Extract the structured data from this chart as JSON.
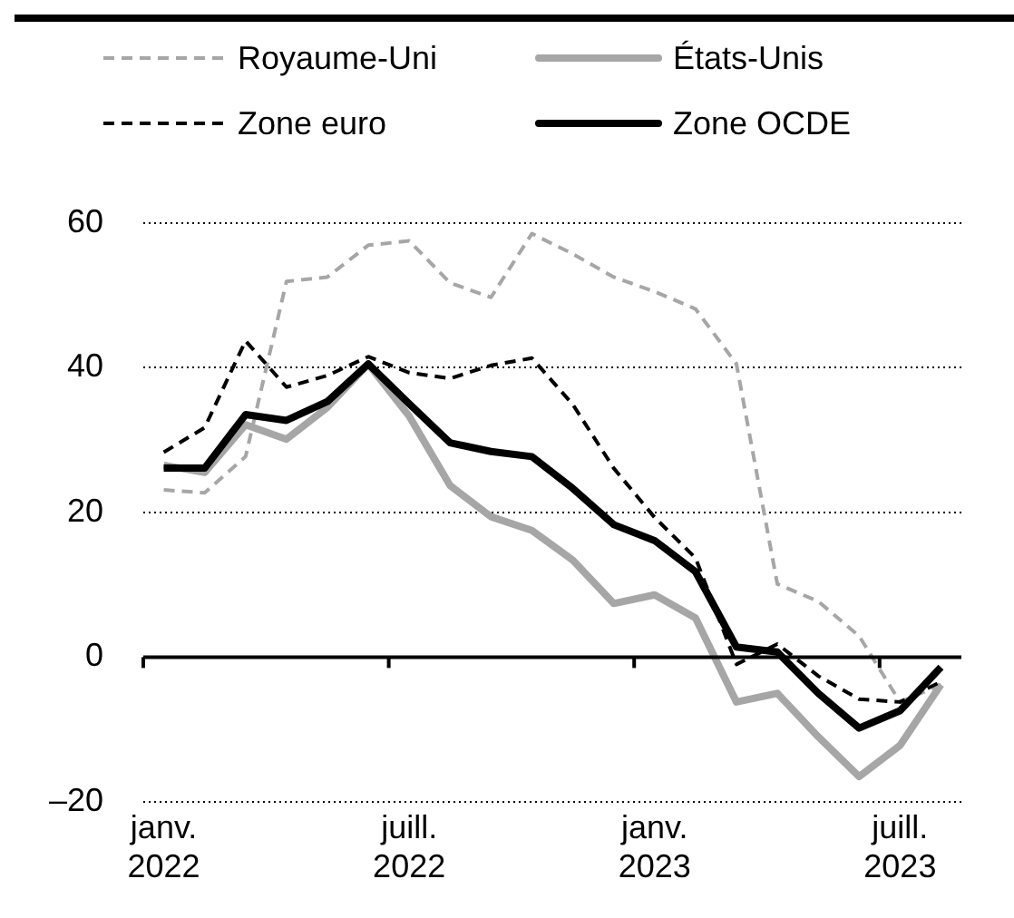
{
  "chart_data": {
    "type": "line",
    "categories": [
      "janv. 2022",
      null,
      null,
      null,
      null,
      null,
      "juill. 2022",
      null,
      null,
      null,
      null,
      null,
      "janv. 2023",
      null,
      null,
      null,
      null,
      null,
      "juill. 2023",
      null
    ],
    "series": [
      {
        "name": "Royaume-Uni",
        "color": "#a6a6a6",
        "line_style": "dashed",
        "values": [
          23.1,
          22.7,
          27.7,
          51.9,
          52.5,
          56.9,
          57.5,
          51.7,
          49.7,
          58.5,
          55.7,
          52.5,
          50.5,
          48.1,
          40.5,
          10.1,
          7.7,
          2.9,
          -6.2,
          -3.8
        ]
      },
      {
        "name": "États-Unis",
        "color": "#a6a6a6",
        "line_style": "solid",
        "values": [
          26.5,
          25.5,
          32.1,
          30.1,
          34.5,
          40.5,
          33.3,
          23.7,
          19.4,
          17.5,
          13.4,
          7.4,
          8.6,
          5.4,
          -6.2,
          -5,
          -11,
          -16.5,
          -12.2,
          -3.8
        ]
      },
      {
        "name": "Zone euro",
        "color": "#000000",
        "line_style": "dashed",
        "values": [
          28.3,
          31.7,
          43.7,
          37.3,
          38.9,
          41.5,
          39.3,
          38.5,
          40.3,
          41.3,
          34.9,
          26.1,
          19.3,
          13.7,
          -1,
          1.8,
          -2.6,
          -5.8,
          -6.2,
          -3.4
        ]
      },
      {
        "name": "Zone OCDE",
        "color": "#000000",
        "line_style": "solid",
        "values": [
          26.1,
          26.1,
          33.5,
          32.7,
          35.3,
          40.5,
          35,
          29.6,
          28.4,
          27.7,
          23.3,
          18.3,
          16.1,
          11.8,
          1.4,
          0.7,
          -5,
          -9.8,
          -7.4,
          -1.4
        ]
      }
    ],
    "ylim": [
      -20,
      60
    ],
    "yticks": [
      {
        "value": -20,
        "label": "–20"
      },
      0,
      20,
      40,
      60
    ],
    "grid": "y",
    "legend": "top",
    "marker": "none"
  }
}
